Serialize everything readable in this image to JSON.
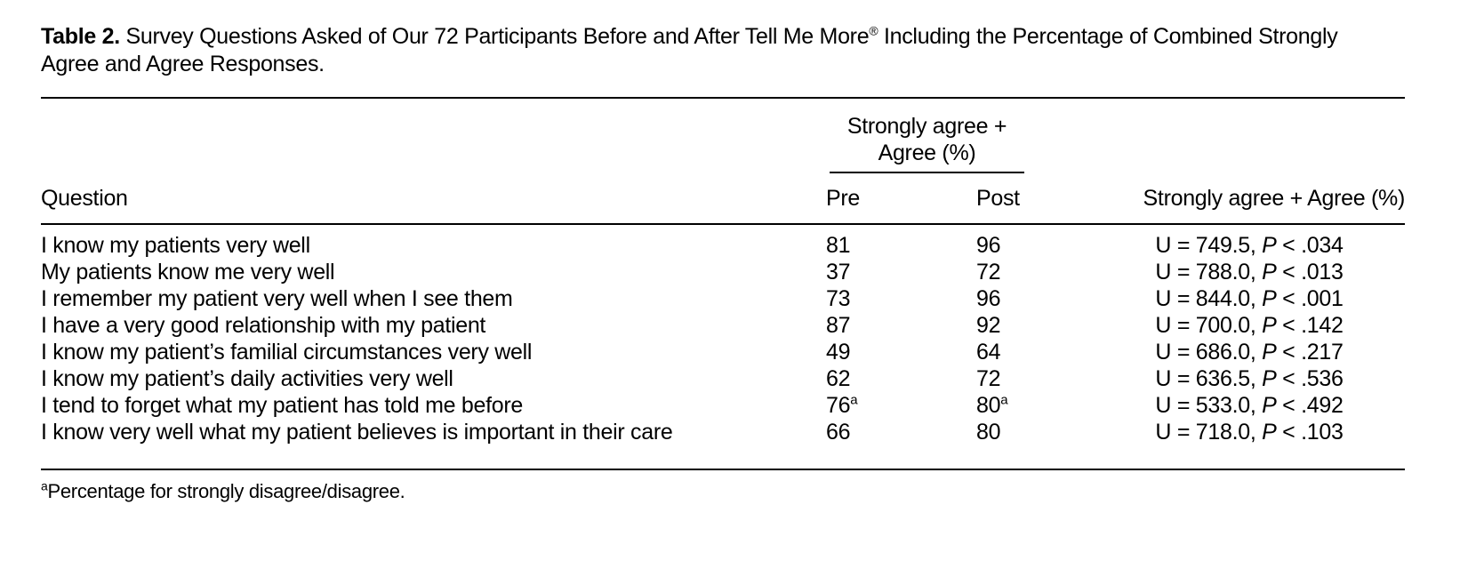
{
  "caption": {
    "label": "Table 2.",
    "line1_before_reg": "Survey Questions Asked of Our 72 Participants Before and After Tell Me More",
    "registered_symbol": "®",
    "line1_after_reg": "Including the Percentage of Combined Strongly",
    "line2": "Agree and Agree Responses."
  },
  "table": {
    "spanner": {
      "line1": "Strongly agree +",
      "line2": "Agree (%)"
    },
    "columns": {
      "question": "Question",
      "pre": "Pre",
      "post": "Post",
      "stat": "Strongly agree + Agree (%)"
    },
    "labels": {
      "p": "P"
    },
    "rows": [
      {
        "question": "I know my patients very well",
        "pre": "81",
        "pre_sup": "",
        "post": "96",
        "post_sup": "",
        "u": "U = 749.5,",
        "p": "< .034"
      },
      {
        "question": "My patients know me very well",
        "pre": "37",
        "pre_sup": "",
        "post": "72",
        "post_sup": "",
        "u": "U = 788.0,",
        "p": "< .013"
      },
      {
        "question": "I remember my patient very well when I see them",
        "pre": "73",
        "pre_sup": "",
        "post": "96",
        "post_sup": "",
        "u": "U = 844.0,",
        "p": "< .001"
      },
      {
        "question": "I have a very good relationship with my patient",
        "pre": "87",
        "pre_sup": "",
        "post": "92",
        "post_sup": "",
        "u": "U = 700.0,",
        "p": "< .142"
      },
      {
        "question": "I know my patient’s familial circumstances very well",
        "pre": "49",
        "pre_sup": "",
        "post": "64",
        "post_sup": "",
        "u": "U = 686.0,",
        "p": "< .217"
      },
      {
        "question": "I know my patient’s daily activities very well",
        "pre": "62",
        "pre_sup": "",
        "post": "72",
        "post_sup": "",
        "u": "U = 636.5,",
        "p": "< .536"
      },
      {
        "question": "I tend to forget what my patient has told me before",
        "pre": "76",
        "pre_sup": "a",
        "post": "80",
        "post_sup": "a",
        "u": "U = 533.0,",
        "p": "< .492"
      },
      {
        "question": "I know very well what my patient believes is important in their care",
        "pre": "66",
        "pre_sup": "",
        "post": "80",
        "post_sup": "",
        "u": "U = 718.0,",
        "p": "< .103"
      }
    ]
  },
  "footnote": {
    "marker": "a",
    "text": "Percentage for strongly disagree/disagree."
  }
}
